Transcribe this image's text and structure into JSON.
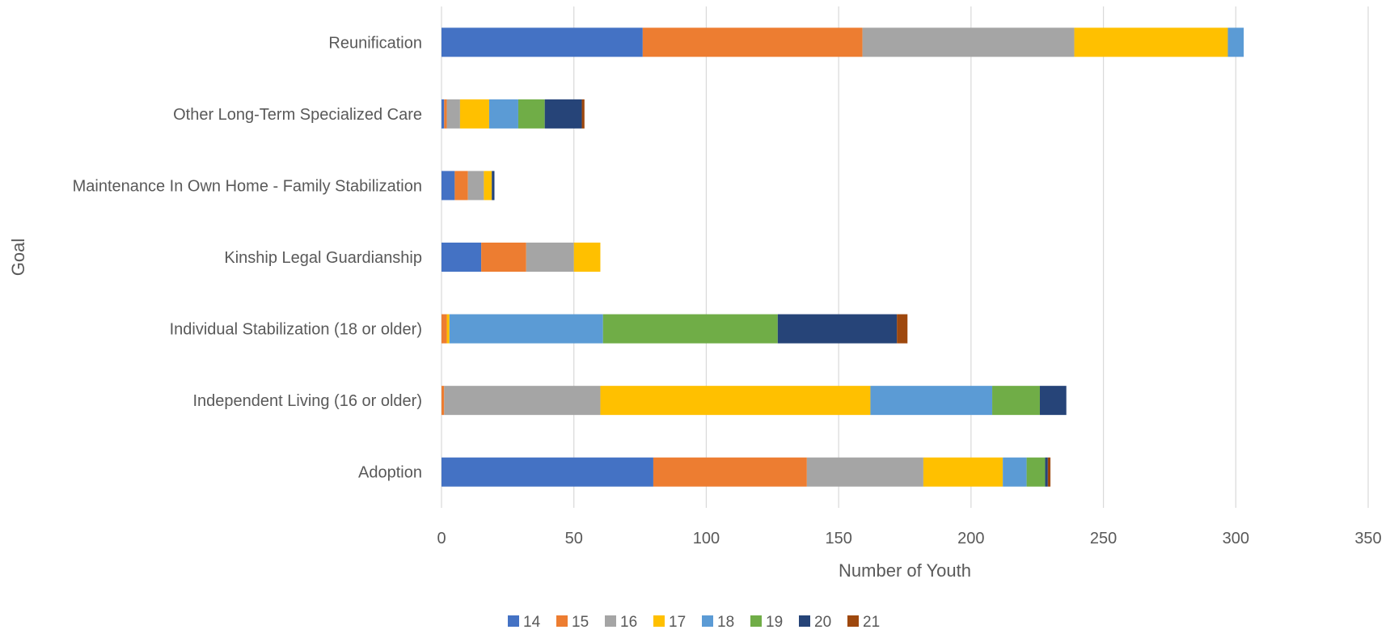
{
  "chart_data": {
    "type": "bar",
    "orientation": "horizontal",
    "stacked": true,
    "xlabel": "Number of Youth",
    "ylabel": "Goal",
    "xlim": [
      0,
      350
    ],
    "xticks": [
      "0",
      "50",
      "100",
      "150",
      "200",
      "250",
      "300",
      "350"
    ],
    "grid": true,
    "legend_position": "bottom",
    "categories": [
      "Adoption",
      "Independent Living (16 or older)",
      "Individual Stabilization (18 or older)",
      "Kinship Legal Guardianship",
      "Maintenance In Own Home - Family Stabilization",
      "Other Long-Term Specialized Care",
      "Reunification"
    ],
    "series": [
      {
        "name": "14",
        "color": "#4472c4",
        "values": [
          80,
          0,
          0,
          15,
          5,
          1,
          76
        ]
      },
      {
        "name": "15",
        "color": "#ed7d31",
        "values": [
          58,
          1,
          2,
          17,
          5,
          1,
          83
        ]
      },
      {
        "name": "16",
        "color": "#a5a5a5",
        "values": [
          44,
          59,
          0,
          18,
          6,
          5,
          80
        ]
      },
      {
        "name": "17",
        "color": "#ffc000",
        "values": [
          30,
          102,
          1,
          10,
          3,
          11,
          58
        ]
      },
      {
        "name": "18",
        "color": "#5b9bd5",
        "values": [
          9,
          46,
          58,
          0,
          0,
          11,
          6
        ]
      },
      {
        "name": "19",
        "color": "#70ad47",
        "values": [
          7,
          18,
          66,
          0,
          0,
          10,
          0
        ]
      },
      {
        "name": "20",
        "color": "#264478",
        "values": [
          1,
          10,
          45,
          0,
          1,
          14,
          0
        ]
      },
      {
        "name": "21",
        "color": "#9e480e",
        "values": [
          1,
          0,
          4,
          0,
          0,
          1,
          0
        ]
      }
    ]
  }
}
